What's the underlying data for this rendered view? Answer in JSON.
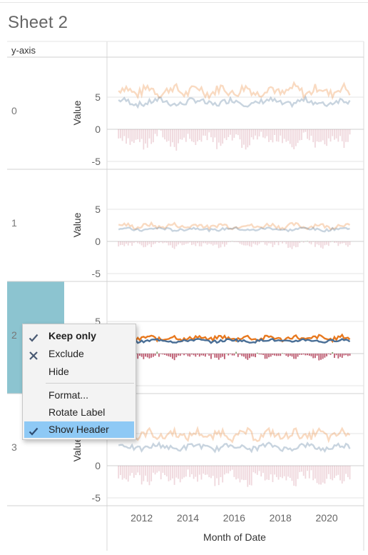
{
  "sheet_title": "Sheet 2",
  "row_header_title": "y-axis",
  "colors": {
    "orange": "#e8791f",
    "blue": "#4a6f96",
    "bar_red": "#b5475f",
    "bar_green": "#7d9a62",
    "selected_row": "#8cc4d0",
    "menu_highlight": "#8ec9f5",
    "grid": "#e4e4e4"
  },
  "chart_data": {
    "type": "line",
    "panes": [
      {
        "row_label": "0",
        "ylabel": "Value",
        "yticks": [
          "5",
          "0",
          "-5"
        ],
        "ylim": [
          -5.8,
          9.5
        ],
        "highlighted": false
      },
      {
        "row_label": "1",
        "ylabel": "Value",
        "yticks": [
          "5",
          "0",
          "-5"
        ],
        "ylim": [
          -5.8,
          9.5
        ],
        "highlighted": false
      },
      {
        "row_label": "2",
        "ylabel": "Value",
        "yticks": [
          "5",
          "0",
          "-5"
        ],
        "ylim": [
          -5.8,
          9.5
        ],
        "highlighted": true
      },
      {
        "row_label": "3",
        "ylabel": "Value",
        "yticks": [
          "5",
          "0",
          "-5"
        ],
        "ylim": [
          -5.8,
          9.5
        ],
        "highlighted": false
      }
    ],
    "xlabel": "Month of Date",
    "xticks": [
      "2012",
      "2014",
      "2016",
      "2018",
      "2020"
    ],
    "xlim": [
      2010.5,
      2021.6
    ],
    "series": [
      {
        "name": "orange line"
      },
      {
        "name": "blue line"
      },
      {
        "name": "difference bars"
      }
    ],
    "grid": true
  },
  "context_menu": {
    "items": [
      {
        "label": "Keep only",
        "icon": "check-icon",
        "bold": true,
        "selected": false
      },
      {
        "label": "Exclude",
        "icon": "x-icon",
        "bold": false,
        "selected": false
      },
      {
        "label": "Hide",
        "icon": "",
        "bold": false,
        "selected": false
      },
      {
        "label": "Format...",
        "icon": "",
        "bold": false,
        "selected": false
      },
      {
        "label": "Rotate Label",
        "icon": "",
        "bold": false,
        "selected": false
      },
      {
        "label": "Show Header",
        "icon": "check-icon",
        "bold": false,
        "selected": true
      }
    ]
  }
}
